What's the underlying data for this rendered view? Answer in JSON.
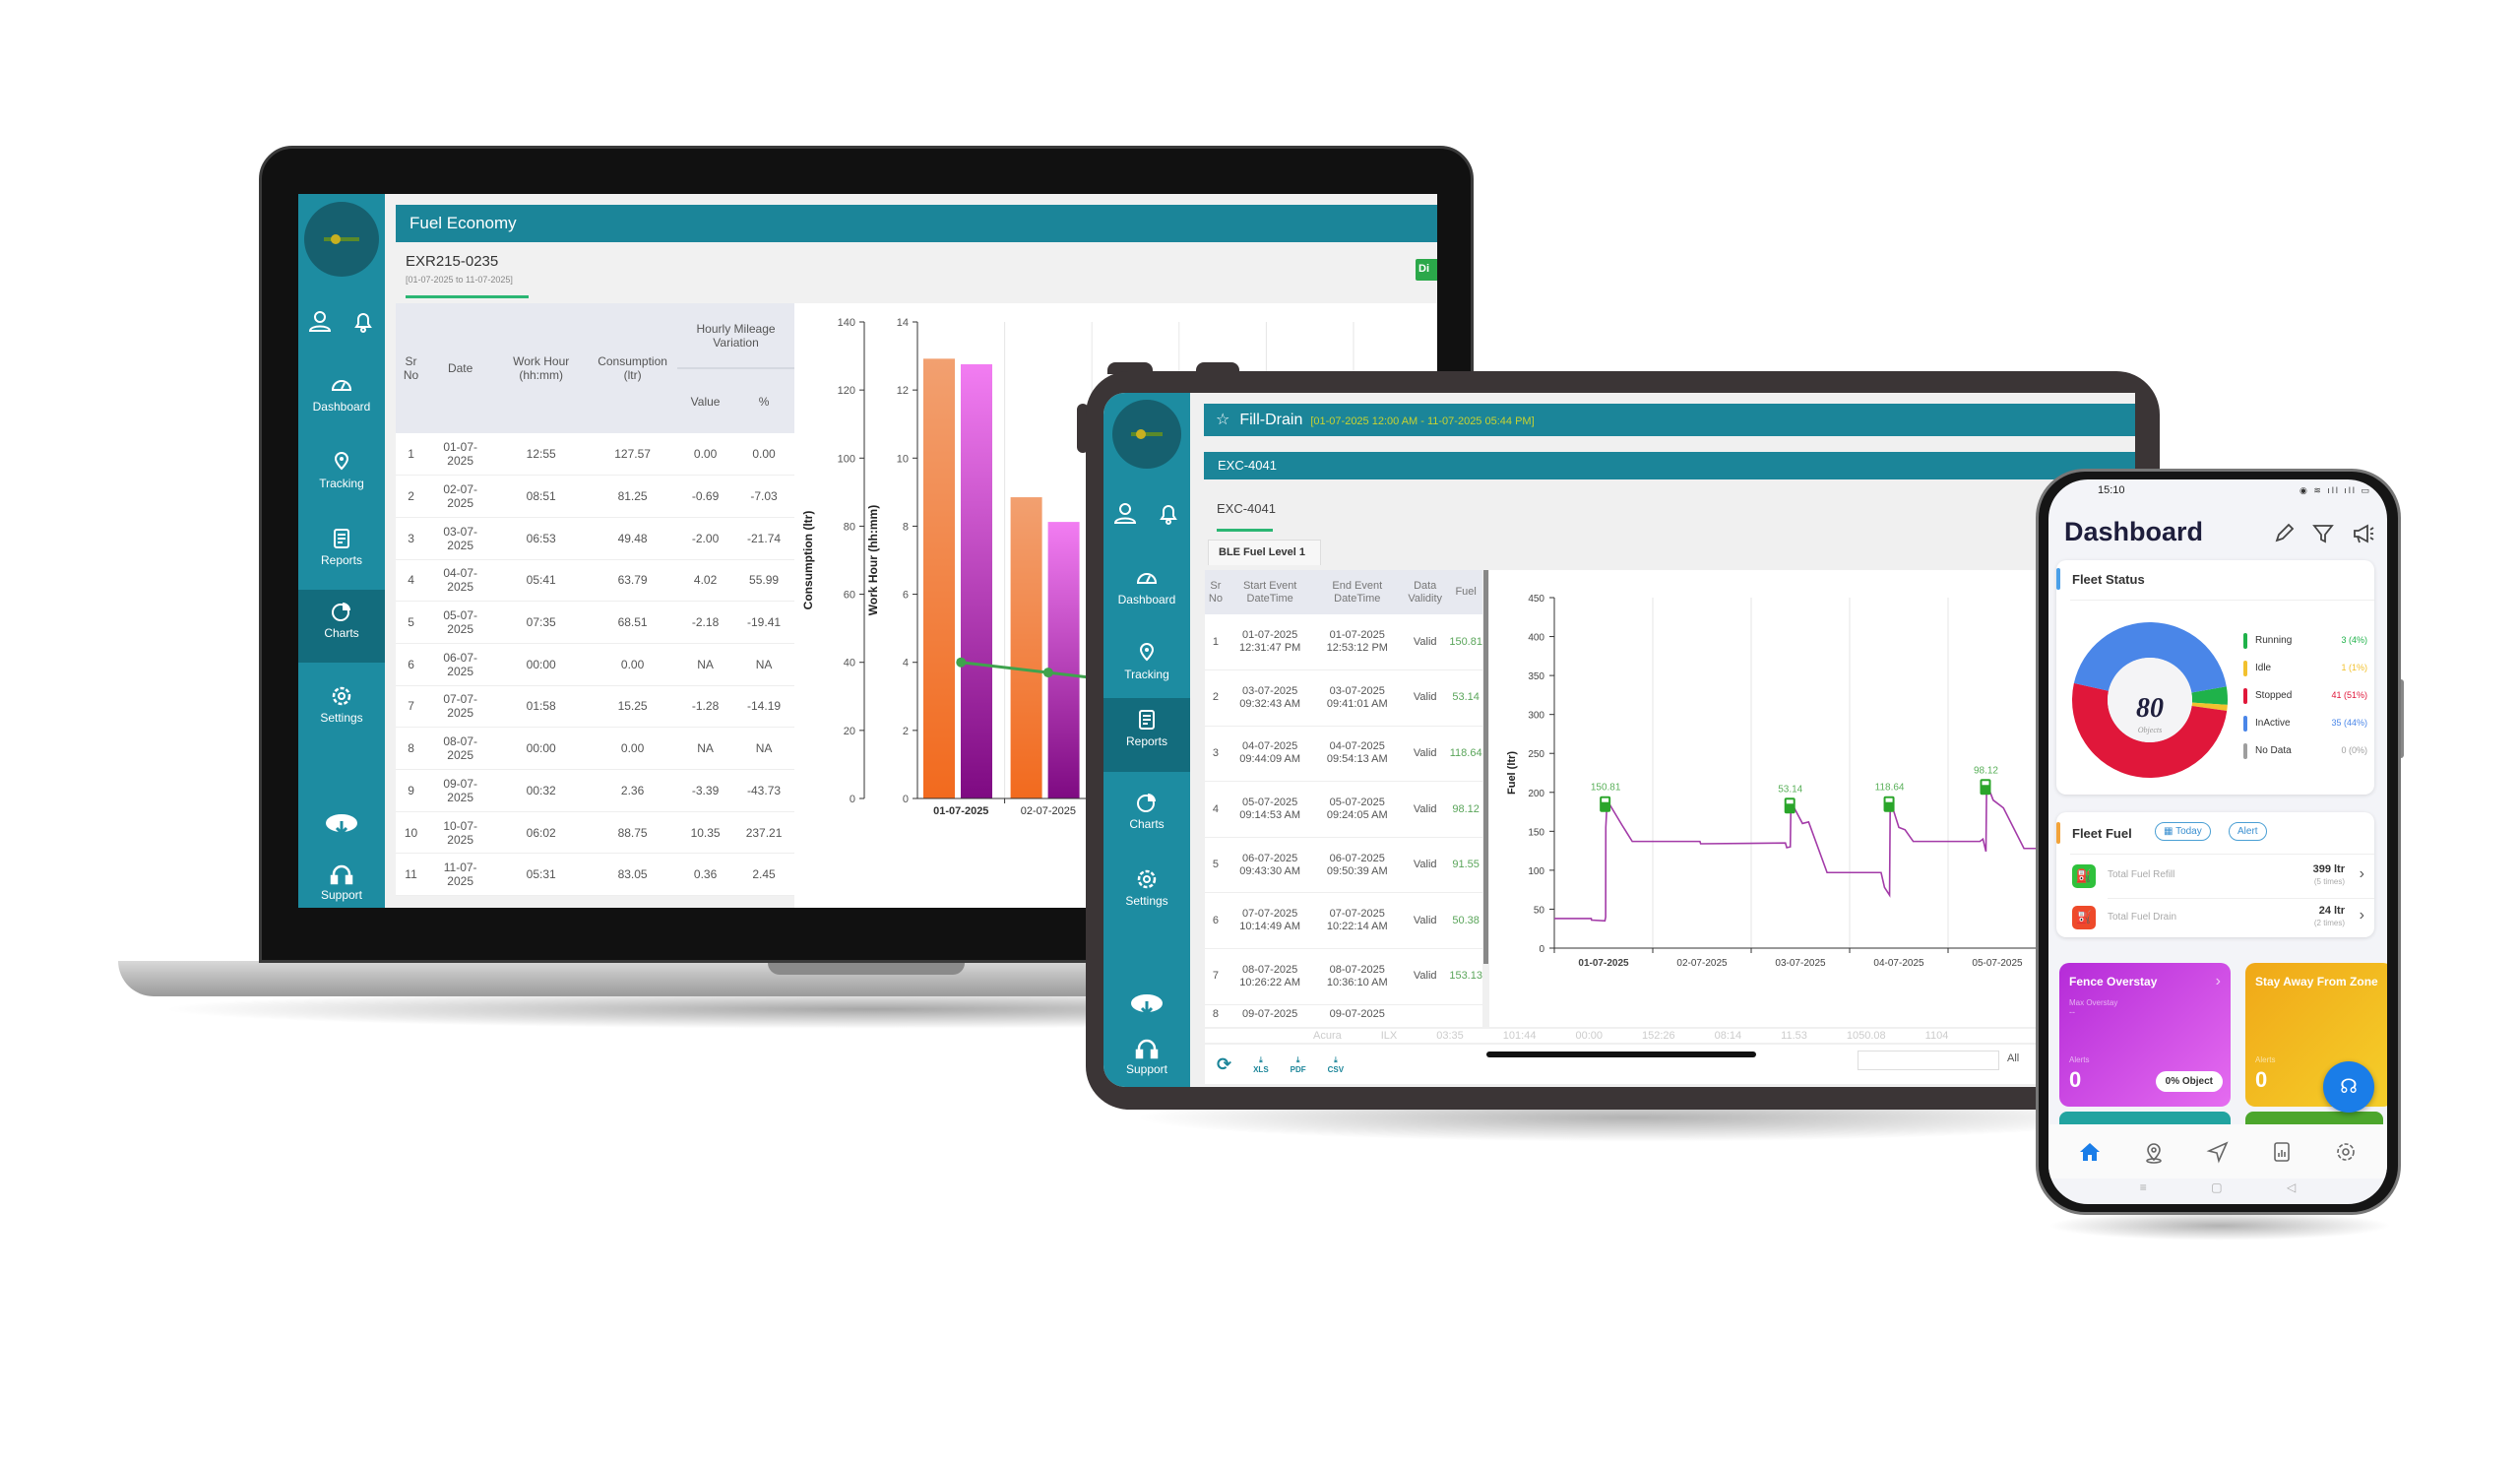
{
  "laptop": {
    "sidebar": {
      "items": [
        {
          "label": "Dashboard",
          "icon": "dashboard-gauge-icon"
        },
        {
          "label": "Tracking",
          "icon": "tracking-pin-icon"
        },
        {
          "label": "Reports",
          "icon": "reports-document-icon"
        },
        {
          "label": "Charts",
          "icon": "charts-pie-icon",
          "active": true
        },
        {
          "label": "Settings",
          "icon": "settings-gear-icon"
        }
      ],
      "download_icon": "cloud-download-icon",
      "support_label": "Support"
    },
    "header_title": "Fuel Economy",
    "vehicle": "EXR215-0235",
    "date_range": "[01-07-2025 to 11-07-2025]",
    "badge": "Di",
    "table": {
      "headers": {
        "sr": "Sr No",
        "date": "Date",
        "work_hour": "Work Hour (hh:mm)",
        "consumption": "Consumption (ltr)",
        "group": "Hourly Mileage Variation",
        "value": "Value",
        "pct": "%"
      },
      "rows": [
        [
          "1",
          "01-07-2025",
          "12:55",
          "127.57",
          "0.00",
          "0.00"
        ],
        [
          "2",
          "02-07-2025",
          "08:51",
          "81.25",
          "-0.69",
          "-7.03"
        ],
        [
          "3",
          "03-07-2025",
          "06:53",
          "49.48",
          "-2.00",
          "-21.74"
        ],
        [
          "4",
          "04-07-2025",
          "05:41",
          "63.79",
          "4.02",
          "55.99"
        ],
        [
          "5",
          "05-07-2025",
          "07:35",
          "68.51",
          "-2.18",
          "-19.41"
        ],
        [
          "6",
          "06-07-2025",
          "00:00",
          "0.00",
          "NA",
          "NA"
        ],
        [
          "7",
          "07-07-2025",
          "01:58",
          "15.25",
          "-1.28",
          "-14.19"
        ],
        [
          "8",
          "08-07-2025",
          "00:00",
          "0.00",
          "NA",
          "NA"
        ],
        [
          "9",
          "09-07-2025",
          "00:32",
          "2.36",
          "-3.39",
          "-43.73"
        ],
        [
          "10",
          "10-07-2025",
          "06:02",
          "88.75",
          "10.35",
          "237.21"
        ],
        [
          "11",
          "11-07-2025",
          "05:31",
          "83.05",
          "0.36",
          "2.45"
        ]
      ]
    }
  },
  "tablet": {
    "sidebar": {
      "items": [
        {
          "label": "Dashboard",
          "icon": "dashboard-gauge-icon"
        },
        {
          "label": "Tracking",
          "icon": "tracking-pin-icon"
        },
        {
          "label": "Reports",
          "icon": "reports-document-icon",
          "active": true
        },
        {
          "label": "Charts",
          "icon": "charts-pie-icon"
        },
        {
          "label": "Settings",
          "icon": "settings-gear-icon"
        }
      ],
      "support_label": "Support"
    },
    "header_title": "Fill-Drain",
    "header_range": "[01-07-2025 12:00 AM - 11-07-2025 05:44 PM]",
    "vehicle_bar": "EXC-4041",
    "vehicle": "EXC-4041",
    "tab": "BLE Fuel Level 1",
    "table": {
      "headers": [
        "Sr No",
        "Start Event DateTime",
        "End Event DateTime",
        "Data Validity",
        "Fuel"
      ],
      "rows": [
        [
          "1",
          "01-07-2025 12:31:47 PM",
          "01-07-2025 12:53:12 PM",
          "Valid",
          "150.81"
        ],
        [
          "2",
          "03-07-2025 09:32:43 AM",
          "03-07-2025 09:41:01 AM",
          "Valid",
          "53.14"
        ],
        [
          "3",
          "04-07-2025 09:44:09 AM",
          "04-07-2025 09:54:13 AM",
          "Valid",
          "118.64"
        ],
        [
          "4",
          "05-07-2025 09:14:53 AM",
          "05-07-2025 09:24:05 AM",
          "Valid",
          "98.12"
        ],
        [
          "5",
          "06-07-2025 09:43:30 AM",
          "06-07-2025 09:50:39 AM",
          "Valid",
          "91.55"
        ],
        [
          "6",
          "07-07-2025 10:14:49 AM",
          "07-07-2025 10:22:14 AM",
          "Valid",
          "50.38"
        ],
        [
          "7",
          "08-07-2025 10:26:22 AM",
          "08-07-2025 10:36:10 AM",
          "Valid",
          "153.13"
        ],
        [
          "8",
          "09-07-2025",
          "09-07-2025",
          "",
          ""
        ]
      ]
    },
    "background_row": [
      "Acura",
      "ILX",
      "03:35",
      "101:44",
      "00:00",
      "152:26",
      "08:14",
      "11.53",
      "1050.08",
      "1104"
    ],
    "toolbar": {
      "refresh_icon": "refresh-icon",
      "xls": "XLS",
      "pdf": "PDF",
      "csv": "CSV"
    },
    "filter_value": "",
    "filter_option": "All"
  },
  "phone": {
    "time": "15:10",
    "title": "Dashboard",
    "header_icons": [
      "edit-pencil-icon",
      "filter-icon",
      "megaphone-icon"
    ],
    "fleet_status": {
      "title": "Fleet Status"
    },
    "fleet_fuel": {
      "title": "Fleet Fuel",
      "today": "Today",
      "alert": "Alert",
      "refill": {
        "label": "Total Fuel Refill",
        "value": "399 ltr",
        "times": "(5 times)"
      },
      "drain": {
        "label": "Total Fuel Drain",
        "value": "24 ltr",
        "times": "(2 times)"
      }
    },
    "tiles": [
      {
        "title": "Fence Overstay",
        "sub": "Max Overstay",
        "sub_value": "--",
        "alerts_label": "Alerts",
        "alerts": "0",
        "badge": "0% Object",
        "color": "#c23be0"
      },
      {
        "title": "Stay Away From Zone",
        "alerts_label": "Alerts",
        "alerts": "0",
        "color": "#f0b21a"
      }
    ],
    "nav": [
      "home-icon",
      "location-pin-icon",
      "navigate-arrow-icon",
      "report-chart-icon",
      "settings-gear-icon"
    ]
  },
  "chart_data": [
    {
      "type": "bar",
      "categories": [
        "01-07-2025",
        "02-07-2025",
        "03-07-2025",
        "04-07-2025",
        "05-07-2025",
        "06-07-2025",
        "07-07-2025",
        "08-07-2025",
        "09-07-2025",
        "10-07-2025",
        "11-07-2025"
      ],
      "series": [
        {
          "axis": "right",
          "color": "#f07a3a",
          "values": [
            12.92,
            8.85,
            6.88,
            5.68,
            7.58,
            0,
            1.97,
            0,
            0.53,
            6.03,
            5.52
          ]
        },
        {
          "axis": "left",
          "color": "#c43fc8",
          "values": [
            127.57,
            81.25,
            49.48,
            63.79,
            68.51,
            0,
            15.25,
            0,
            2.36,
            88.75,
            83.05
          ]
        }
      ],
      "line": {
        "axis": "right",
        "color": "#3fa34d",
        "values": [
          4.0,
          3.7
        ]
      },
      "ylabel_left": "Consumption (ltr)",
      "ylim_left": [
        0,
        140
      ],
      "yticks_left": [
        0,
        20,
        40,
        60,
        80,
        100,
        120,
        140
      ],
      "ylabel_right": "Work Hour (hh:mm)",
      "ylim_right": [
        0,
        14
      ],
      "yticks_right": [
        0,
        2,
        4,
        6,
        8,
        10,
        12,
        14
      ],
      "grid": "vertical"
    },
    {
      "type": "line",
      "ylabel": "Fuel (ltr)",
      "ylim": [
        0,
        450
      ],
      "yticks": [
        0,
        50,
        100,
        150,
        200,
        250,
        300,
        350,
        400,
        450
      ],
      "xticks": [
        "01-07-2025",
        "02-07-2025",
        "03-07-2025",
        "04-07-2025",
        "05-07-2025"
      ],
      "color": "#a33ba8",
      "points": [
        [
          "01-07-2025 00:00",
          38
        ],
        [
          "01-07-2025 09:00",
          38
        ],
        [
          "01-07-2025 09:05",
          36
        ],
        [
          "01-07-2025 12:20",
          35
        ],
        [
          "01-07-2025 12:31",
          40
        ],
        [
          "01-07-2025 12:33",
          155
        ],
        [
          "01-07-2025 12:53",
          190
        ],
        [
          "01-07-2025 14:00",
          180
        ],
        [
          "01-07-2025 16:30",
          158
        ],
        [
          "01-07-2025 19:00",
          137
        ],
        [
          "02-07-2025 11:30",
          137
        ],
        [
          "02-07-2025 11:40",
          134
        ],
        [
          "03-07-2025 08:20",
          135
        ],
        [
          "03-07-2025 08:40",
          129
        ],
        [
          "03-07-2025 09:32",
          130
        ],
        [
          "03-07-2025 09:41",
          188
        ],
        [
          "03-07-2025 12:30",
          160
        ],
        [
          "03-07-2025 14:00",
          162
        ],
        [
          "03-07-2025 18:30",
          97
        ],
        [
          "04-07-2025 07:40",
          97
        ],
        [
          "04-07-2025 08:30",
          78
        ],
        [
          "04-07-2025 09:44",
          68
        ],
        [
          "04-07-2025 09:54",
          190
        ],
        [
          "04-07-2025 12:00",
          155
        ],
        [
          "04-07-2025 13:30",
          152
        ],
        [
          "04-07-2025 15:30",
          137
        ],
        [
          "05-07-2025 07:45",
          137
        ],
        [
          "05-07-2025 08:30",
          140
        ],
        [
          "05-07-2025 09:14",
          124
        ],
        [
          "05-07-2025 09:24",
          212
        ],
        [
          "05-07-2025 11:00",
          190
        ],
        [
          "05-07-2025 13:30",
          180
        ],
        [
          "05-07-2025 18:30",
          128
        ],
        [
          "05-07-2025 23:00",
          128
        ]
      ],
      "fill_markers": [
        {
          "time": "01-07-2025 12:31",
          "level": 190,
          "label": "150.81"
        },
        {
          "time": "03-07-2025 09:32",
          "level": 188,
          "label": "53.14"
        },
        {
          "time": "04-07-2025 09:44",
          "level": 190,
          "label": "118.64"
        },
        {
          "time": "05-07-2025 09:14",
          "level": 212,
          "label": "98.12"
        }
      ],
      "grid": "vertical"
    },
    {
      "type": "pie",
      "title": "Fleet Status",
      "center_value": "80",
      "center_label": "Objects",
      "categories": [
        "Running",
        "Idle",
        "Stopped",
        "InActive",
        "No Data"
      ],
      "values": [
        3,
        1,
        41,
        35,
        0
      ],
      "value_labels": [
        "3 (4%)",
        "1 (1%)",
        "41 (51%)",
        "35 (44%)",
        "0 (0%)"
      ],
      "colors": [
        "#1fb24a",
        "#f2c12e",
        "#e0173a",
        "#4a86e8",
        "#9e9e9e"
      ]
    }
  ]
}
